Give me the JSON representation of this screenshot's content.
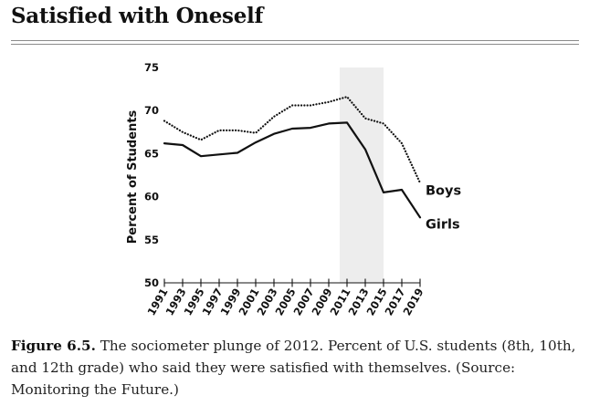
{
  "page": {
    "heading": "Satisfied with Oneself",
    "caption_label": "Figure 6.5.",
    "caption_text": " The sociometer plunge of 2012. Percent of U.S. students (8th, 10th, and 12th grade) who said they were satisfied with themselves. (Source: Monitoring the Future.)"
  },
  "chart_data": {
    "type": "line",
    "title": "",
    "xlabel": "",
    "ylabel": "Percent of Students",
    "ylim": [
      50,
      75
    ],
    "yticks": [
      50,
      55,
      60,
      65,
      70,
      75
    ],
    "xlim": [
      1991,
      2019
    ],
    "xticks": [
      1991,
      1993,
      1995,
      1997,
      1999,
      2001,
      2003,
      2005,
      2007,
      2009,
      2011,
      2013,
      2015,
      2017,
      2019
    ],
    "grid": false,
    "highlight_band": {
      "x_from": 2011,
      "x_to": 2015,
      "color": "#ededed"
    },
    "series": [
      {
        "name": "Boys",
        "style": "dotted",
        "color": "#111111",
        "x": [
          1991,
          1993,
          1995,
          1997,
          1999,
          2001,
          2003,
          2005,
          2007,
          2009,
          2011,
          2013,
          2015,
          2017,
          2019
        ],
        "values": [
          68.8,
          67.5,
          66.6,
          67.7,
          67.7,
          67.4,
          69.3,
          70.6,
          70.6,
          71.0,
          71.6,
          69.1,
          68.5,
          66.2,
          61.6
        ]
      },
      {
        "name": "Girls",
        "style": "solid",
        "color": "#111111",
        "x": [
          1991,
          1993,
          1995,
          1997,
          1999,
          2001,
          2003,
          2005,
          2007,
          2009,
          2011,
          2013,
          2015,
          2017,
          2019
        ],
        "values": [
          66.2,
          66.0,
          64.7,
          64.9,
          65.1,
          66.3,
          67.3,
          67.9,
          68.0,
          68.5,
          68.6,
          65.5,
          60.5,
          60.8,
          57.6
        ]
      }
    ]
  }
}
